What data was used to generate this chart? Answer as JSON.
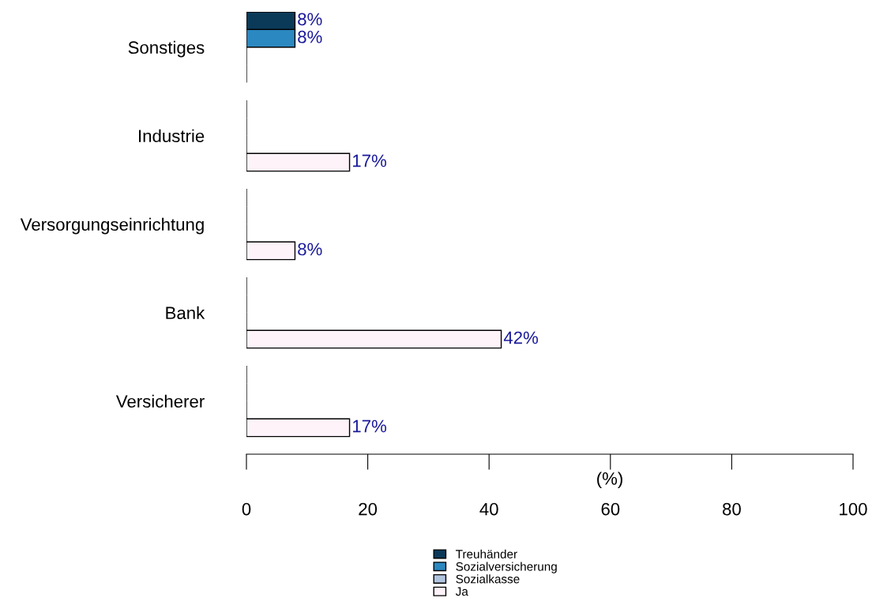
{
  "chart_data": {
    "type": "bar",
    "orientation": "horizontal",
    "xlabel": "(%)",
    "categories": [
      "Sonstiges",
      "Industrie",
      "Versorgungseinrichtung",
      "Bank",
      "Versicherer"
    ],
    "series": [
      {
        "name": "Treuhänder",
        "color": "#0b3a59",
        "values": [
          8,
          0,
          0,
          0,
          0
        ],
        "value_labels": [
          "8%",
          null,
          null,
          null,
          null
        ]
      },
      {
        "name": "Sozialversicherung",
        "color": "#2b88c0",
        "values": [
          8,
          0,
          0,
          0,
          0
        ],
        "value_labels": [
          "8%",
          null,
          null,
          null,
          null
        ]
      },
      {
        "name": "Sozialkasse",
        "color": "#b0c4de",
        "values": [
          0,
          0,
          0,
          0,
          0
        ],
        "value_labels": [
          null,
          null,
          null,
          null,
          null
        ]
      },
      {
        "name": "Ja",
        "color": "#fff3fa",
        "values": [
          0,
          17,
          8,
          42,
          17
        ],
        "value_labels": [
          null,
          "17%",
          "8%",
          "42%",
          "17%"
        ]
      }
    ],
    "xlim": [
      0,
      100
    ],
    "xticks": [
      0,
      20,
      40,
      60,
      80,
      100
    ],
    "grid": false,
    "legend": "bottom"
  }
}
